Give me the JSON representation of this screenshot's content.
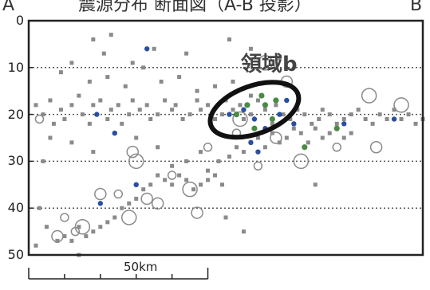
{
  "chart_data": {
    "type": "scatter",
    "title": "震源分布 断面図（A-B 投影）",
    "endpoints": {
      "left": "A",
      "right": "B"
    },
    "ylabel": "",
    "ylim": [
      0,
      50
    ],
    "y_inverted": true,
    "y_ticks": [
      "0",
      "10",
      "20",
      "30",
      "40",
      "50"
    ],
    "grid": "dotted horizontal at 10, 20, 30, 40",
    "scale_bar": {
      "label": "50km",
      "length_km": 50
    },
    "annotation": {
      "label": "領域b",
      "shape": "ellipse",
      "center": {
        "x_km": 63,
        "y": 19
      }
    },
    "colors": {
      "event": "#8a8a8a",
      "deep_marker": "#2a4fa0",
      "highlight": "#4a8a45",
      "frame": "#222222",
      "annotation": "#111111"
    },
    "series": [
      {
        "marker": "gray-square",
        "points": [
          [
            2,
            18
          ],
          [
            4,
            20
          ],
          [
            6,
            17
          ],
          [
            7,
            22
          ],
          [
            9,
            19
          ],
          [
            10,
            21
          ],
          [
            12,
            18
          ],
          [
            14,
            16
          ],
          [
            15,
            20
          ],
          [
            17,
            22
          ],
          [
            18,
            18
          ],
          [
            20,
            17
          ],
          [
            22,
            21
          ],
          [
            23,
            19
          ],
          [
            25,
            18
          ],
          [
            26,
            22
          ],
          [
            28,
            20
          ],
          [
            29,
            17
          ],
          [
            31,
            19
          ],
          [
            33,
            18
          ],
          [
            34,
            21
          ],
          [
            36,
            20
          ],
          [
            38,
            17
          ],
          [
            40,
            19
          ],
          [
            41,
            18
          ],
          [
            43,
            21
          ],
          [
            45,
            20
          ],
          [
            47,
            17
          ],
          [
            48,
            19
          ],
          [
            50,
            18
          ],
          [
            52,
            21
          ],
          [
            54,
            20
          ],
          [
            55,
            17
          ],
          [
            57,
            19
          ],
          [
            59,
            18
          ],
          [
            60,
            21
          ],
          [
            62,
            20
          ],
          [
            64,
            17
          ],
          [
            66,
            19
          ],
          [
            68,
            22
          ],
          [
            69,
            18
          ],
          [
            71,
            20
          ],
          [
            73,
            21
          ],
          [
            75,
            19
          ],
          [
            77,
            20
          ],
          [
            79,
            22
          ],
          [
            81,
            21
          ],
          [
            82,
            19
          ],
          [
            84,
            20
          ],
          [
            86,
            22
          ],
          [
            88,
            21
          ],
          [
            90,
            20
          ],
          [
            92,
            19
          ],
          [
            94,
            21
          ],
          [
            96,
            22
          ],
          [
            98,
            20
          ],
          [
            100,
            21
          ],
          [
            102,
            19
          ],
          [
            104,
            21
          ],
          [
            106,
            20
          ],
          [
            108,
            22
          ],
          [
            110,
            21
          ],
          [
            9,
            11
          ],
          [
            12,
            9
          ],
          [
            17,
            13
          ],
          [
            22,
            12
          ],
          [
            27,
            14
          ],
          [
            32,
            10
          ],
          [
            37,
            13
          ],
          [
            42,
            12
          ],
          [
            47,
            15
          ],
          [
            52,
            14
          ],
          [
            57,
            13
          ],
          [
            62,
            16
          ],
          [
            12,
            26
          ],
          [
            18,
            28
          ],
          [
            24,
            24
          ],
          [
            30,
            25
          ],
          [
            36,
            27
          ],
          [
            40,
            31
          ],
          [
            44,
            30
          ],
          [
            48,
            28
          ],
          [
            50,
            32
          ],
          [
            53,
            30
          ],
          [
            56,
            29
          ],
          [
            58,
            27
          ],
          [
            60,
            28
          ],
          [
            62,
            26
          ],
          [
            64,
            25
          ],
          [
            66,
            27
          ],
          [
            68,
            24
          ],
          [
            70,
            26
          ],
          [
            72,
            25
          ],
          [
            74,
            23
          ],
          [
            76,
            24
          ],
          [
            78,
            26
          ],
          [
            80,
            23
          ],
          [
            82,
            25
          ],
          [
            84,
            24
          ],
          [
            86,
            23
          ],
          [
            88,
            25
          ],
          [
            90,
            24
          ],
          [
            36,
            33
          ],
          [
            34,
            35
          ],
          [
            32,
            36
          ],
          [
            30,
            38
          ],
          [
            28,
            39
          ],
          [
            26,
            40
          ],
          [
            24,
            42
          ],
          [
            22,
            43
          ],
          [
            20,
            44
          ],
          [
            18,
            45
          ],
          [
            16,
            46
          ],
          [
            14,
            44
          ],
          [
            12,
            47
          ],
          [
            10,
            46
          ],
          [
            38,
            34
          ],
          [
            40,
            35
          ],
          [
            42,
            33
          ],
          [
            44,
            34
          ],
          [
            46,
            36
          ],
          [
            48,
            35
          ],
          [
            50,
            34
          ],
          [
            52,
            33
          ],
          [
            54,
            35
          ],
          [
            18,
            4
          ],
          [
            21,
            7
          ],
          [
            23,
            3
          ],
          [
            29,
            9
          ],
          [
            35,
            6
          ],
          [
            44,
            7
          ],
          [
            56,
            4
          ],
          [
            62,
            6
          ],
          [
            70,
            8
          ],
          [
            4,
            30
          ],
          [
            6,
            25
          ],
          [
            3,
            40
          ],
          [
            5,
            44
          ],
          [
            8,
            47
          ],
          [
            2,
            48
          ],
          [
            14,
            50
          ],
          [
            55,
            42
          ],
          [
            60,
            45
          ],
          [
            80,
            35
          ]
        ]
      },
      {
        "marker": "gray-circle",
        "points": [
          [
            3,
            21
          ],
          [
            29,
            28
          ],
          [
            59,
            21
          ],
          [
            64,
            31
          ],
          [
            69,
            25
          ],
          [
            76,
            30
          ],
          [
            86,
            27
          ],
          [
            97,
            27
          ],
          [
            104,
            18
          ],
          [
            25,
            37
          ],
          [
            33,
            38
          ],
          [
            15,
            44
          ],
          [
            13,
            45
          ],
          [
            8,
            46
          ],
          [
            45,
            36
          ],
          [
            58,
            24
          ],
          [
            72,
            13
          ],
          [
            66,
            9
          ],
          [
            40,
            33
          ],
          [
            20,
            37
          ],
          [
            30,
            30
          ],
          [
            50,
            27
          ],
          [
            36,
            39
          ],
          [
            28,
            42
          ],
          [
            10,
            42
          ],
          [
            47,
            41
          ],
          [
            95,
            16
          ]
        ]
      },
      {
        "marker": "blue",
        "points": [
          [
            60,
            19
          ],
          [
            63,
            21
          ],
          [
            66,
            23
          ],
          [
            62,
            26
          ],
          [
            64,
            28
          ],
          [
            70,
            20
          ],
          [
            74,
            22
          ],
          [
            72,
            17
          ],
          [
            19,
            20
          ],
          [
            24,
            24
          ],
          [
            30,
            35
          ],
          [
            20,
            39
          ],
          [
            56,
            20
          ],
          [
            102,
            21
          ],
          [
            33,
            6
          ],
          [
            88,
            22
          ]
        ]
      },
      {
        "marker": "green",
        "points": [
          [
            58,
            20
          ],
          [
            61,
            18
          ],
          [
            66,
            18
          ],
          [
            68,
            21
          ],
          [
            65,
            16
          ],
          [
            69,
            17
          ],
          [
            63,
            23
          ],
          [
            77,
            27
          ],
          [
            86,
            23
          ]
        ]
      }
    ]
  }
}
